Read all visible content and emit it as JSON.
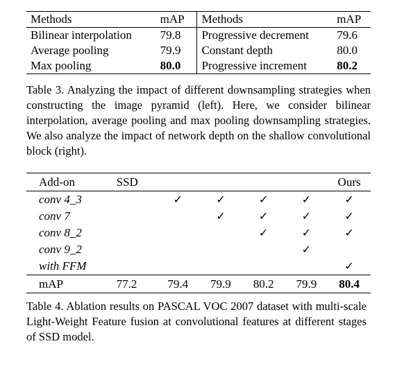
{
  "table3": {
    "headers": [
      "Methods",
      "mAP",
      "Methods",
      "mAP"
    ],
    "rows": [
      {
        "m1": "Bilinear interpolation",
        "v1": "79.8",
        "m2": "Progressive decrement",
        "v2": "79.6"
      },
      {
        "m1": "Average pooling",
        "v1": "79.9",
        "m2": "Constant depth",
        "v2": "80.0"
      },
      {
        "m1": "Max pooling",
        "v1": "80.0",
        "m2": "Progressive increment",
        "v2": "80.2"
      }
    ],
    "caption": "Table 3. Analyzing the impact of different downsampling strategies when constructing the image pyramid (left). Here, we consider bilinear interpolation, average pooling and max pooling downsampling strategies. We also analyze the impact of network depth on the shallow convolutional block (right)."
  },
  "table4": {
    "header": {
      "addon": "Add-on",
      "ssd": "SSD",
      "ours": "Ours"
    },
    "check_mark": "✓",
    "rows": [
      {
        "label": "conv 4_3",
        "checks": [
          false,
          true,
          true,
          true,
          true,
          true
        ]
      },
      {
        "label": "conv 7",
        "checks": [
          false,
          false,
          true,
          true,
          true,
          true
        ]
      },
      {
        "label": "conv 8_2",
        "checks": [
          false,
          false,
          false,
          true,
          true,
          true
        ]
      },
      {
        "label": "conv 9_2",
        "checks": [
          false,
          false,
          false,
          false,
          true,
          false
        ]
      },
      {
        "label": "with FFM",
        "checks": [
          false,
          false,
          false,
          false,
          false,
          true
        ]
      }
    ],
    "map_label": "mAP",
    "map_values": [
      "77.2",
      "79.4",
      "79.9",
      "80.2",
      "79.9",
      "80.4"
    ],
    "caption": "Table 4. Ablation results on PASCAL VOC 2007 dataset with multi-scale Light-Weight Feature fusion at convolutional features at different stages of SSD model."
  }
}
